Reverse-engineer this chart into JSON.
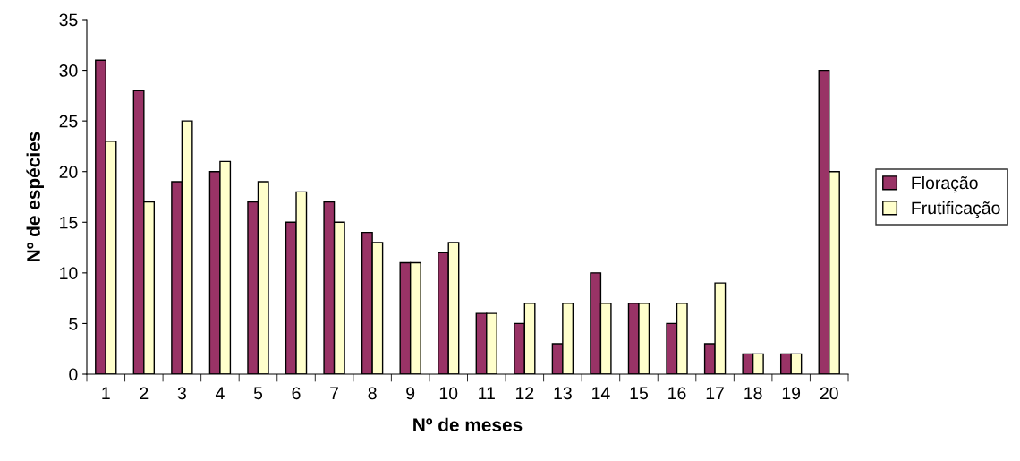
{
  "chart_data": {
    "type": "bar",
    "xlabel": "Nº de meses",
    "ylabel": "Nº de espécies",
    "categories": [
      "1",
      "2",
      "3",
      "4",
      "5",
      "6",
      "7",
      "8",
      "9",
      "10",
      "11",
      "12",
      "13",
      "14",
      "15",
      "16",
      "17",
      "18",
      "19",
      "20"
    ],
    "series": [
      {
        "name": "Floração",
        "color": "#993366",
        "values": [
          31,
          28,
          19,
          20,
          17,
          15,
          17,
          14,
          11,
          12,
          6,
          5,
          3,
          10,
          7,
          5,
          3,
          2,
          2,
          30
        ]
      },
      {
        "name": "Frutificação",
        "color": "#ffffcc",
        "values": [
          23,
          17,
          25,
          21,
          19,
          18,
          15,
          13,
          11,
          13,
          6,
          7,
          7,
          7,
          7,
          7,
          9,
          2,
          2,
          20
        ]
      }
    ],
    "ylim": [
      0,
      35
    ],
    "yticks": [
      0,
      5,
      10,
      15,
      20,
      25,
      30,
      35
    ],
    "grid": false,
    "legend": "right"
  }
}
